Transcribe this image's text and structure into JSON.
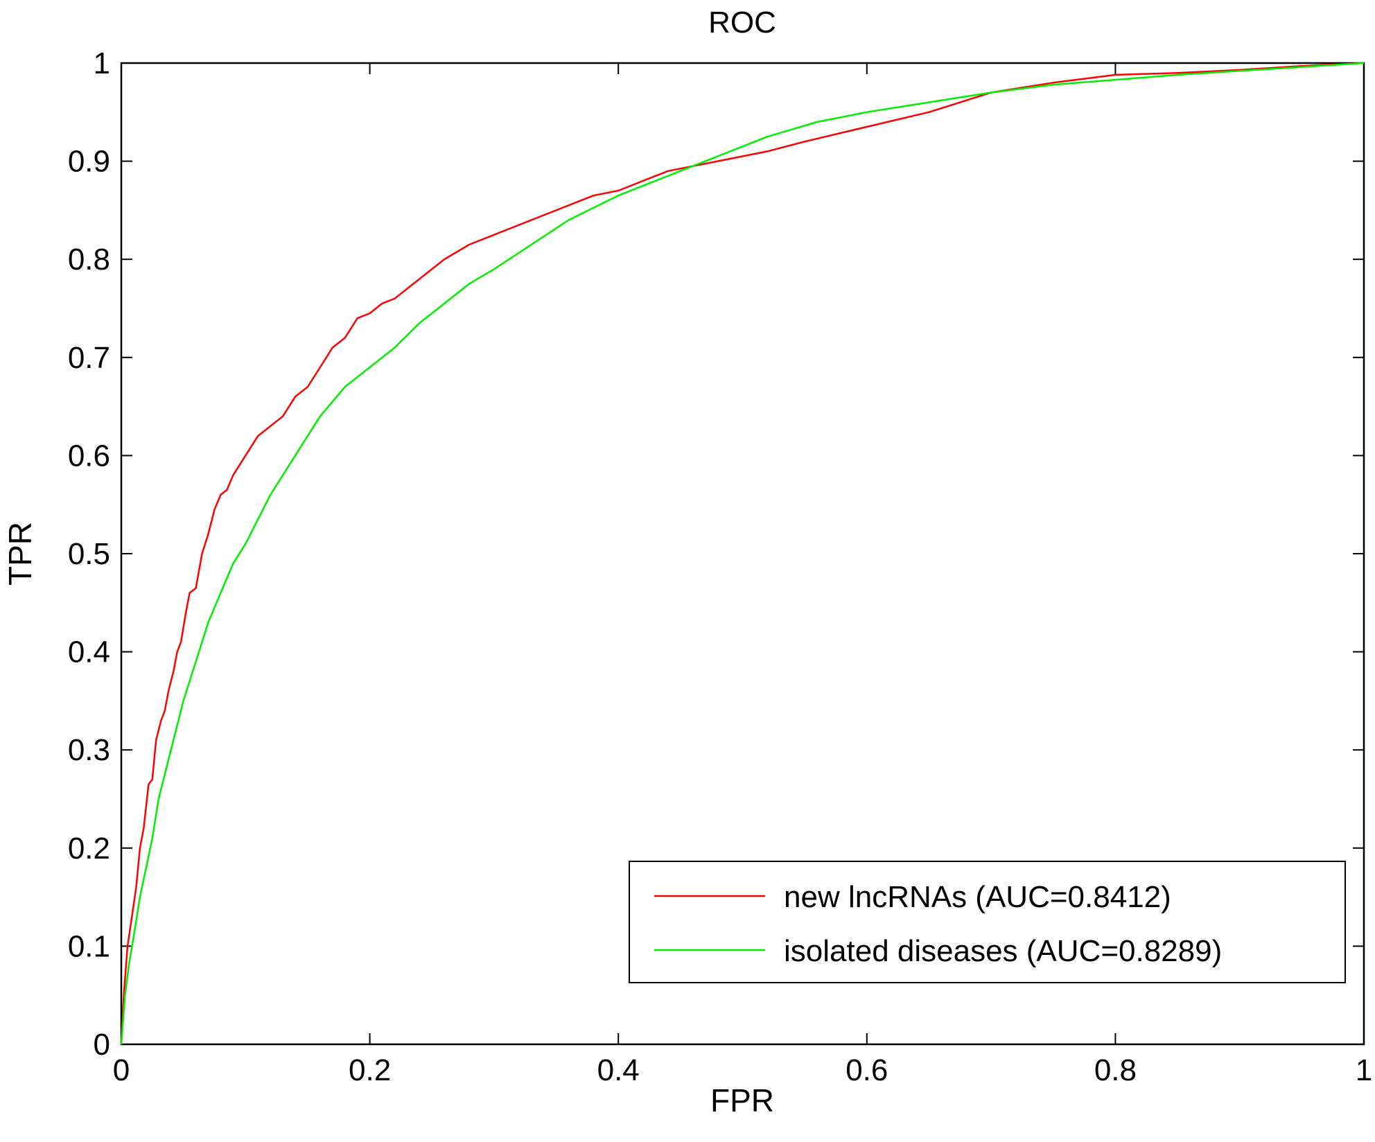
{
  "chart_data": {
    "type": "line",
    "title": "ROC",
    "xlabel": "FPR",
    "ylabel": "TPR",
    "xlim": [
      0,
      1
    ],
    "ylim": [
      0,
      1
    ],
    "xticks": [
      "0",
      "0.2",
      "0.4",
      "0.6",
      "0.8",
      "1"
    ],
    "yticks": [
      "0",
      "0.1",
      "0.2",
      "0.3",
      "0.4",
      "0.5",
      "0.6",
      "0.7",
      "0.8",
      "0.9",
      "1"
    ],
    "grid": false,
    "legend_position": "bottom-right",
    "series": [
      {
        "name": "new lncRNAs (AUC=0.8412)",
        "color": "#ff0000",
        "x": [
          0,
          0.002,
          0.005,
          0.008,
          0.012,
          0.015,
          0.018,
          0.022,
          0.025,
          0.028,
          0.032,
          0.035,
          0.038,
          0.042,
          0.045,
          0.048,
          0.052,
          0.055,
          0.06,
          0.065,
          0.07,
          0.075,
          0.08,
          0.085,
          0.09,
          0.1,
          0.11,
          0.12,
          0.13,
          0.14,
          0.15,
          0.16,
          0.17,
          0.18,
          0.19,
          0.2,
          0.21,
          0.22,
          0.24,
          0.26,
          0.28,
          0.3,
          0.32,
          0.34,
          0.36,
          0.38,
          0.4,
          0.42,
          0.44,
          0.46,
          0.48,
          0.5,
          0.52,
          0.55,
          0.6,
          0.65,
          0.7,
          0.75,
          0.8,
          0.85,
          0.9,
          0.95,
          1.0
        ],
        "y": [
          0,
          0.05,
          0.1,
          0.125,
          0.16,
          0.2,
          0.22,
          0.265,
          0.27,
          0.31,
          0.33,
          0.34,
          0.36,
          0.38,
          0.4,
          0.41,
          0.44,
          0.46,
          0.465,
          0.5,
          0.52,
          0.545,
          0.56,
          0.565,
          0.58,
          0.6,
          0.62,
          0.63,
          0.64,
          0.66,
          0.67,
          0.69,
          0.71,
          0.72,
          0.74,
          0.745,
          0.755,
          0.76,
          0.78,
          0.8,
          0.815,
          0.825,
          0.835,
          0.845,
          0.855,
          0.865,
          0.87,
          0.88,
          0.89,
          0.895,
          0.9,
          0.905,
          0.91,
          0.92,
          0.935,
          0.95,
          0.97,
          0.98,
          0.988,
          0.99,
          0.993,
          0.997,
          1.0
        ]
      },
      {
        "name": "isolated diseases (AUC=0.8289)",
        "color": "#00ee00",
        "x": [
          0,
          0.003,
          0.006,
          0.01,
          0.015,
          0.02,
          0.025,
          0.03,
          0.04,
          0.05,
          0.06,
          0.07,
          0.08,
          0.09,
          0.1,
          0.12,
          0.14,
          0.16,
          0.18,
          0.2,
          0.22,
          0.24,
          0.26,
          0.28,
          0.3,
          0.33,
          0.36,
          0.4,
          0.44,
          0.48,
          0.52,
          0.56,
          0.6,
          0.65,
          0.7,
          0.75,
          0.8,
          0.85,
          0.9,
          0.95,
          1.0
        ],
        "y": [
          0,
          0.05,
          0.08,
          0.11,
          0.15,
          0.18,
          0.21,
          0.25,
          0.3,
          0.35,
          0.39,
          0.43,
          0.46,
          0.49,
          0.51,
          0.56,
          0.6,
          0.64,
          0.67,
          0.69,
          0.71,
          0.735,
          0.755,
          0.775,
          0.79,
          0.815,
          0.84,
          0.865,
          0.885,
          0.905,
          0.925,
          0.94,
          0.95,
          0.96,
          0.97,
          0.978,
          0.983,
          0.988,
          0.992,
          0.996,
          1.0
        ]
      }
    ]
  }
}
